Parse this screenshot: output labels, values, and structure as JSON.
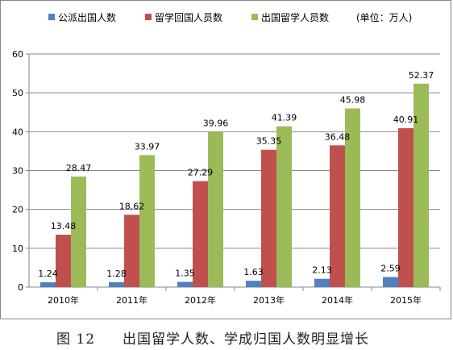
{
  "chart_data": {
    "type": "bar",
    "categories": [
      "2010年",
      "2011年",
      "2012年",
      "2013年",
      "2014年",
      "2015年"
    ],
    "series": [
      {
        "name": "公派出国人数",
        "values": [
          1.24,
          1.28,
          1.35,
          1.63,
          2.13,
          2.59
        ],
        "color": "#4F81BD"
      },
      {
        "name": "留学回国人员数",
        "values": [
          13.48,
          18.62,
          27.29,
          35.35,
          36.48,
          40.91
        ],
        "color": "#C0504D"
      },
      {
        "name": "出国留学人员数",
        "values": [
          28.47,
          33.97,
          39.96,
          41.39,
          45.98,
          52.37
        ],
        "color": "#9BBB59"
      }
    ],
    "unit_note": "(单位：万人)",
    "ylim": [
      0,
      60
    ],
    "yticks": [
      0,
      10,
      20,
      30,
      40,
      50,
      60
    ],
    "grid": true,
    "legend_position": "top"
  },
  "caption": {
    "figure_label": "图 12",
    "text": "出国留学人数、学成归国人数明显增长"
  }
}
